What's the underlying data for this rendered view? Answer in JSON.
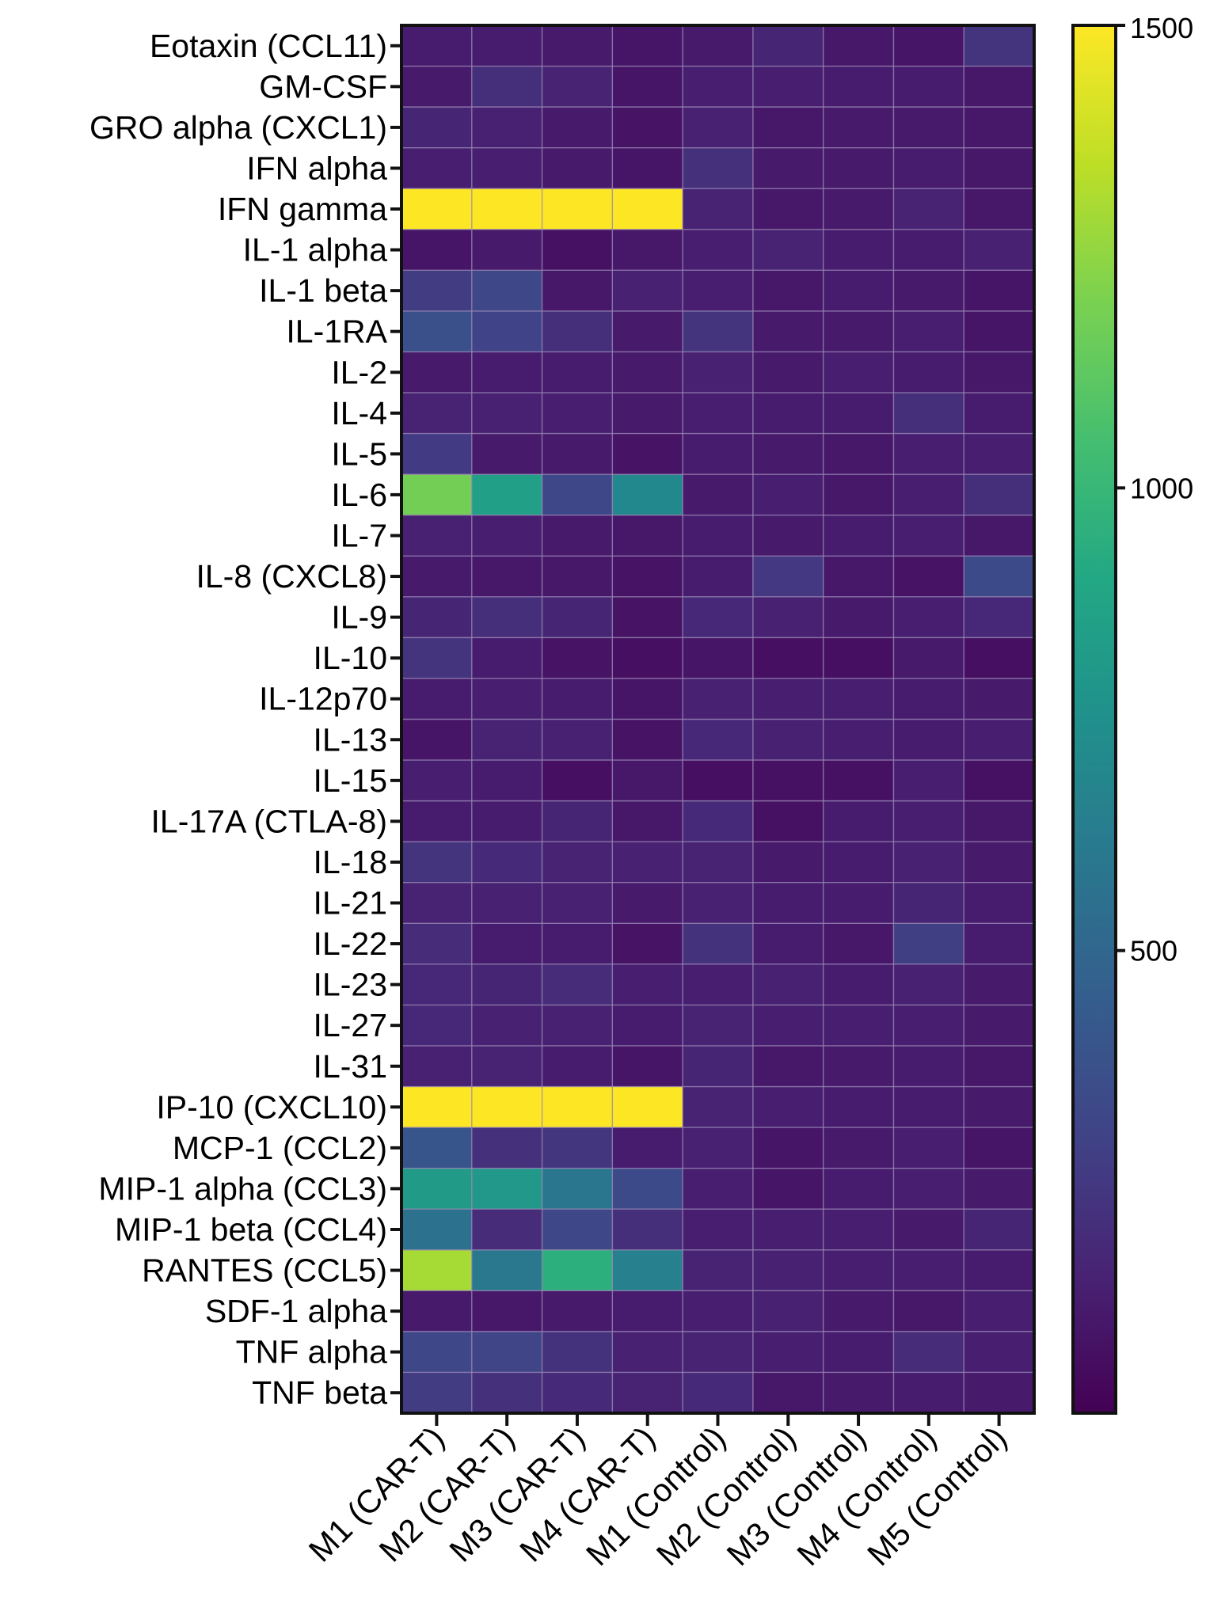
{
  "chart_data": {
    "type": "heatmap",
    "title": "",
    "xlabel": "",
    "ylabel": "",
    "rows": [
      "Eotaxin (CCL11)",
      "GM-CSF",
      "GRO alpha (CXCL1)",
      "IFN alpha",
      "IFN gamma",
      "IL-1 alpha",
      "IL-1 beta",
      "IL-1RA",
      "IL-2",
      "IL-4",
      "IL-5",
      "IL-6",
      "IL-7",
      "IL-8 (CXCL8)",
      "IL-9",
      "IL-10",
      "IL-12p70",
      "IL-13",
      "IL-15",
      "IL-17A (CTLA-8)",
      "IL-18",
      "IL-21",
      "IL-22",
      "IL-23",
      "IL-27",
      "IL-31",
      "IP-10 (CXCL10)",
      "MCP-1 (CCL2)",
      "MIP-1 alpha (CCL3)",
      "MIP-1 beta (CCL4)",
      "RANTES (CCL5)",
      "SDF-1 alpha",
      "TNF alpha",
      "TNF beta"
    ],
    "columns": [
      "M1 (CAR-T)",
      "M2 (CAR-T)",
      "M3 (CAR-T)",
      "M4 (CAR-T)",
      "M1 (Control)",
      "M2 (Control)",
      "M3 (Control)",
      "M4 (Control)",
      "M5 (Control)"
    ],
    "values": [
      [
        120,
        120,
        110,
        90,
        110,
        160,
        100,
        90,
        230
      ],
      [
        110,
        200,
        150,
        90,
        130,
        130,
        120,
        120,
        100
      ],
      [
        160,
        140,
        110,
        80,
        140,
        100,
        110,
        110,
        100
      ],
      [
        130,
        130,
        110,
        90,
        210,
        110,
        110,
        120,
        100
      ],
      [
        1500,
        1500,
        1500,
        1500,
        150,
        100,
        110,
        150,
        100
      ],
      [
        90,
        110,
        70,
        100,
        130,
        150,
        120,
        120,
        140
      ],
      [
        270,
        330,
        100,
        140,
        130,
        100,
        120,
        110,
        90
      ],
      [
        370,
        300,
        200,
        110,
        230,
        110,
        110,
        130,
        90
      ],
      [
        110,
        120,
        120,
        110,
        140,
        110,
        130,
        120,
        100
      ],
      [
        150,
        140,
        130,
        110,
        130,
        120,
        120,
        200,
        120
      ],
      [
        260,
        110,
        110,
        80,
        120,
        110,
        100,
        130,
        130
      ],
      [
        1180,
        850,
        330,
        700,
        110,
        130,
        100,
        130,
        200
      ],
      [
        140,
        130,
        110,
        100,
        120,
        110,
        120,
        130,
        100
      ],
      [
        110,
        100,
        100,
        80,
        120,
        250,
        100,
        80,
        340
      ],
      [
        160,
        200,
        160,
        80,
        170,
        140,
        110,
        130,
        170
      ],
      [
        230,
        120,
        80,
        60,
        90,
        60,
        60,
        110,
        60
      ],
      [
        120,
        130,
        120,
        90,
        140,
        130,
        130,
        120,
        110
      ],
      [
        90,
        150,
        140,
        80,
        170,
        140,
        130,
        120,
        130
      ],
      [
        130,
        120,
        60,
        100,
        60,
        70,
        70,
        130,
        70
      ],
      [
        120,
        120,
        160,
        100,
        180,
        70,
        120,
        130,
        100
      ],
      [
        230,
        180,
        150,
        140,
        150,
        110,
        120,
        140,
        110
      ],
      [
        150,
        140,
        140,
        110,
        140,
        120,
        120,
        160,
        120
      ],
      [
        190,
        120,
        120,
        80,
        220,
        120,
        100,
        280,
        120
      ],
      [
        170,
        160,
        190,
        130,
        130,
        140,
        120,
        140,
        110
      ],
      [
        170,
        140,
        140,
        120,
        150,
        130,
        130,
        130,
        110
      ],
      [
        140,
        150,
        120,
        90,
        160,
        100,
        110,
        120,
        100
      ],
      [
        1500,
        1500,
        1500,
        1500,
        150,
        130,
        120,
        120,
        110
      ],
      [
        400,
        210,
        240,
        120,
        140,
        90,
        110,
        130,
        90
      ],
      [
        820,
        800,
        590,
        340,
        130,
        90,
        120,
        130,
        110
      ],
      [
        560,
        190,
        330,
        200,
        130,
        130,
        130,
        110,
        160
      ],
      [
        1300,
        600,
        950,
        650,
        150,
        140,
        130,
        130,
        120
      ],
      [
        110,
        100,
        110,
        120,
        130,
        140,
        110,
        100,
        130
      ],
      [
        320,
        310,
        220,
        140,
        150,
        130,
        120,
        190,
        130
      ],
      [
        270,
        210,
        180,
        150,
        180,
        100,
        110,
        120,
        110
      ]
    ],
    "colorbar": {
      "min": 0,
      "max": 1500,
      "ticks": [
        500,
        1000,
        1500
      ],
      "tick_labels": [
        "500",
        "1000",
        "1500"
      ]
    },
    "colormap": "viridis",
    "colors": {
      "grid_line": "#9a88b5",
      "frame": "#111111"
    }
  }
}
